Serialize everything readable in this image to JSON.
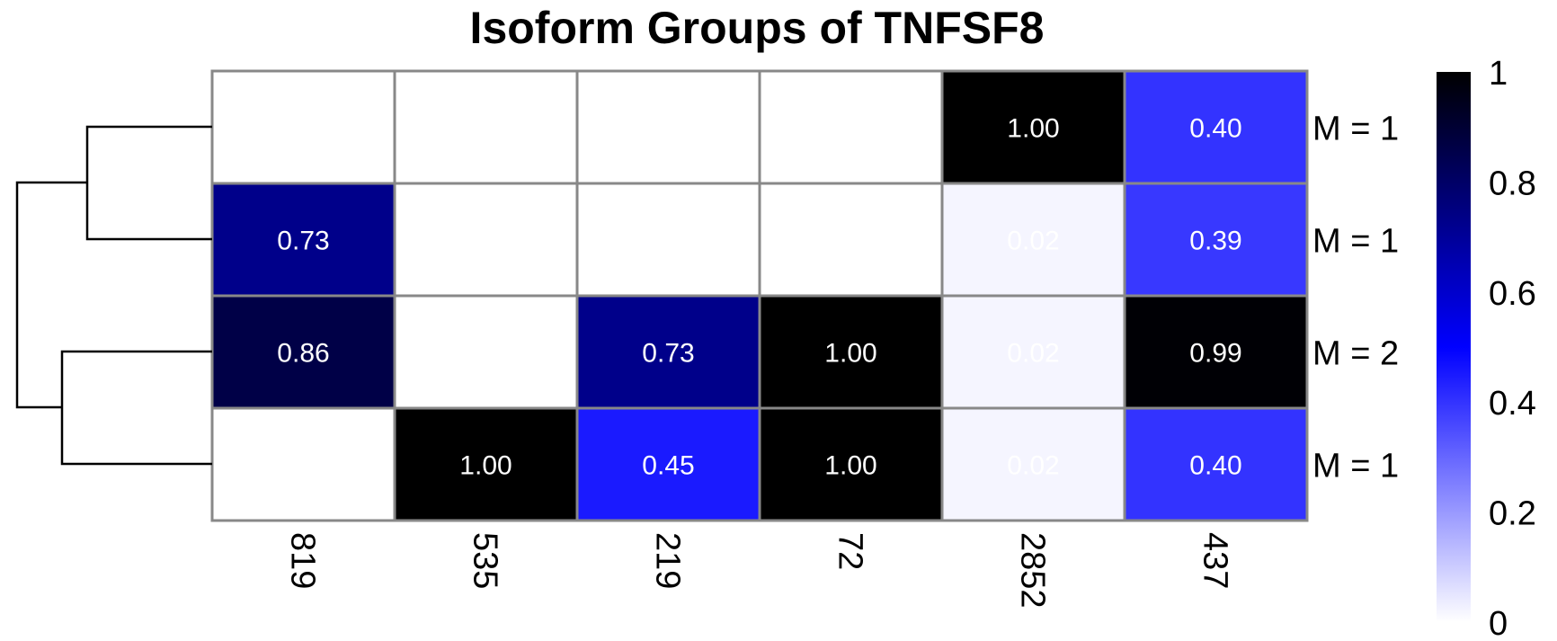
{
  "chart_data": {
    "type": "heatmap",
    "title": "Isoform Groups of TNFSF8",
    "columns": [
      "819",
      "535",
      "219",
      "72",
      "2852",
      "437"
    ],
    "rows": [
      "M = 1",
      "M = 1",
      "M = 2",
      "M = 1"
    ],
    "values": [
      [
        null,
        null,
        null,
        null,
        1.0,
        0.4
      ],
      [
        0.73,
        null,
        null,
        null,
        0.02,
        0.39
      ],
      [
        0.86,
        null,
        0.73,
        1.0,
        0.02,
        0.99
      ],
      [
        null,
        1.0,
        0.45,
        1.0,
        0.02,
        0.4
      ]
    ],
    "value_labels": [
      [
        "",
        "",
        "",
        "",
        "1.00",
        "0.40"
      ],
      [
        "0.73",
        "",
        "",
        "",
        "0.02",
        "0.39"
      ],
      [
        "0.86",
        "",
        "0.73",
        "1.00",
        "0.02",
        "0.99"
      ],
      [
        "",
        "1.00",
        "0.45",
        "1.00",
        "0.02",
        "0.40"
      ]
    ],
    "colorbar": {
      "range": [
        0,
        1
      ],
      "ticks": [
        "0",
        "0.2",
        "0.4",
        "0.6",
        "0.8",
        "1"
      ],
      "colors": [
        "#ffffff",
        "#0000ff",
        "#000000"
      ]
    },
    "dendrogram": "rows (left)",
    "grid_color": "#888888"
  }
}
